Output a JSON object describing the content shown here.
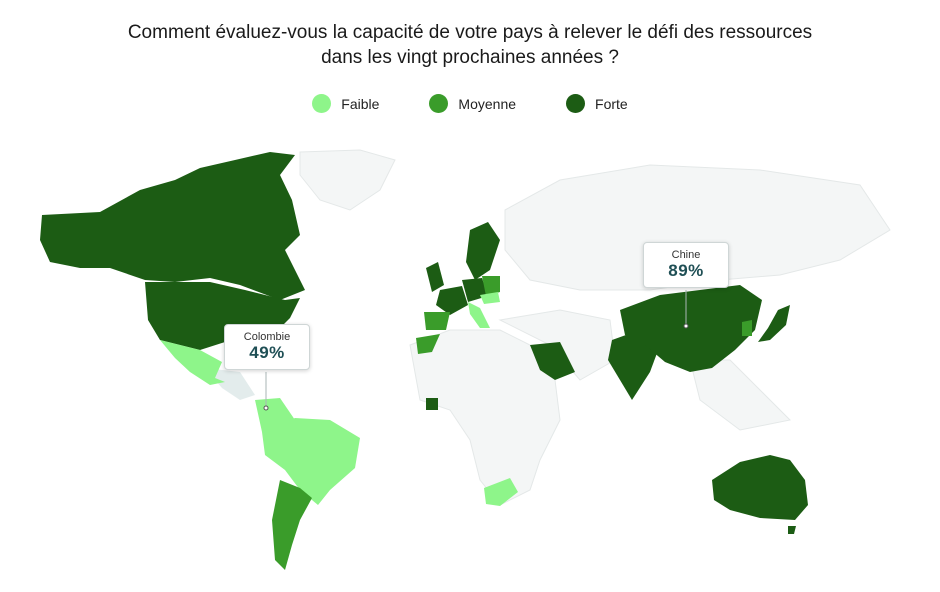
{
  "title_line1": "Comment évaluez-vous la capacité de votre pays à relever le défi des ressources",
  "title_line2": "dans les vingt prochaines années ?",
  "legend": [
    {
      "label": "Faible",
      "color": "#8ef58a"
    },
    {
      "label": "Moyenne",
      "color": "#3a9c2a"
    },
    {
      "label": "Forte",
      "color": "#1c5c14"
    }
  ],
  "colors": {
    "faible": "#8ef58a",
    "moyenne": "#3a9c2a",
    "forte": "#1c5c14",
    "none": "#f4f6f6",
    "highlight": "#e3ecec",
    "border": "#e4e8e8"
  },
  "tooltips": [
    {
      "country": "Colombie",
      "value": "49%"
    },
    {
      "country": "Chine",
      "value": "89%"
    }
  ]
}
